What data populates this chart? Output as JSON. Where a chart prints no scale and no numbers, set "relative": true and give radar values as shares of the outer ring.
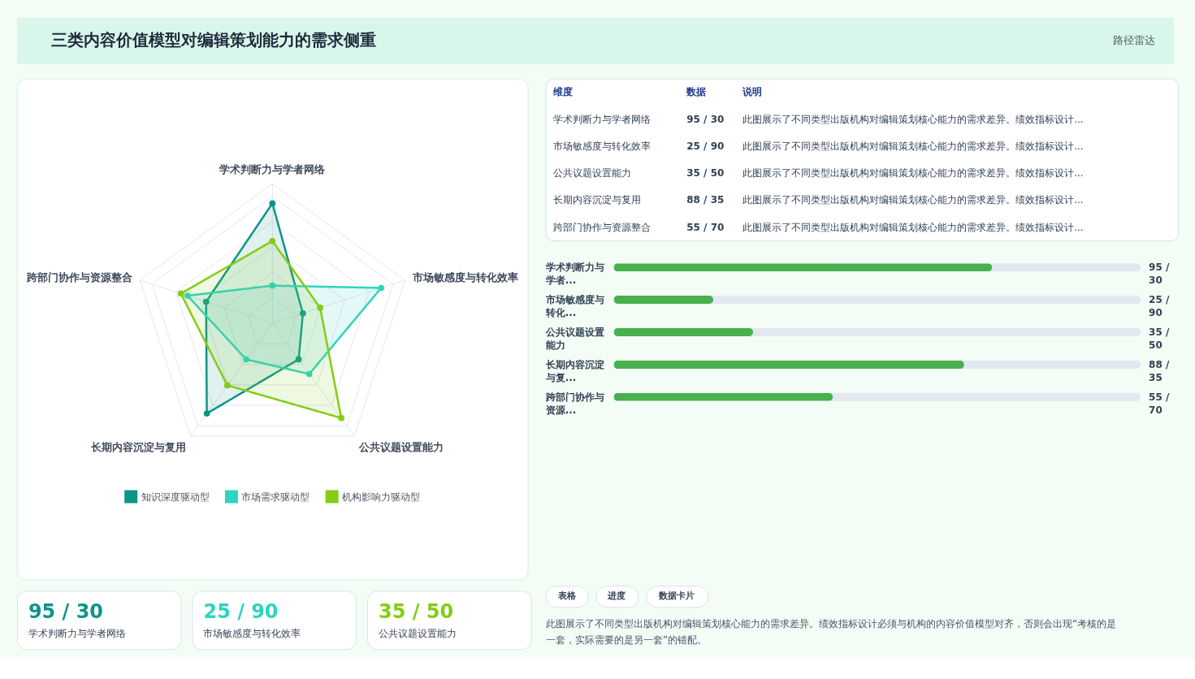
{
  "chart_data": [
    {
      "type": "radar",
      "title": "三类内容价值模型对编辑策划能力的需求侧重",
      "annotations": [
        "路径雷达"
      ],
      "categories": [
        "学术判断力与学者网络",
        "市场敏感度与转化效率",
        "公共议题设置能力",
        "长期内容沉淀与复用",
        "跨部门协作与资源整合"
      ],
      "relative": true,
      "grid": true,
      "legend": "bottom",
      "marker": "circle",
      "line_style": "solid",
      "series": [
        {
          "name": "知识深度驱动型",
          "color": "#0d9488",
          "values": [
            0.86,
            0.23,
            0.32,
            0.8,
            0.5
          ]
        },
        {
          "name": "市场需求驱动型",
          "color": "#2dd4bf",
          "values": [
            0.27,
            0.82,
            0.45,
            0.32,
            0.64
          ]
        },
        {
          "name": "机构影响力驱动型",
          "color": "#84cc16",
          "values": [
            0.59,
            0.36,
            0.84,
            0.55,
            0.69
          ]
        }
      ]
    },
    {
      "type": "other",
      "annotations": [
        "维度",
        "数据",
        "说明",
        "学术判断力与学者网络",
        "95 / 30",
        "此图展示了不同类型出版机构对编辑策划核心能力的需求差异。绩效指标设计...",
        "市场敏感度与转化效率",
        "25 / 90",
        "此图展示了不同类型出版机构对编辑策划核心能力的需求差异。绩效指标设计...",
        "公共议题设置能力",
        "35 / 50",
        "此图展示了不同类型出版机构对编辑策划核心能力的需求差异。绩效指标设计...",
        "长期内容沉淀与复用",
        "88 / 35",
        "此图展示了不同类型出版机构对编辑策划核心能力的需求差异。绩效指标设计...",
        "跨部门协作与资源整合",
        "55 / 70",
        "此图展示了不同类型出版机构对编辑策划核心能力的需求差异。绩效指标设计..."
      ]
    },
    {
      "type": "bar",
      "orientation": "horizontal",
      "categories": [
        "学术判断力与学者...",
        "市场敏感度与转化...",
        "公共议题设置能力",
        "长期内容沉淀与复...",
        "跨部门协作与资源..."
      ],
      "values": [
        95,
        25,
        35,
        88,
        55
      ],
      "value_labels": [
        "95 / 30",
        "25 / 90",
        "35 / 50",
        "88 / 35",
        "55 / 70"
      ],
      "color": "#48b04f"
    },
    {
      "type": "other",
      "annotations": [
        "95 / 30",
        "学术判断力与学者网络",
        "25 / 90",
        "市场敏感度与转化效率",
        "35 / 50",
        "公共议题设置能力"
      ],
      "colors": [
        "#0d9488",
        "#2dd4bf",
        "#84cc16"
      ]
    },
    {
      "type": "other",
      "annotations": [
        "表格",
        "进度",
        "数据卡片",
        "此图展示了不同类型出版机构对编辑策划核心能力的需求差异。绩效指标设计必须与机构的内容价值模型对齐，否则会出现“考核的是一套，实际需要的是另一套”的错配。"
      ]
    }
  ]
}
